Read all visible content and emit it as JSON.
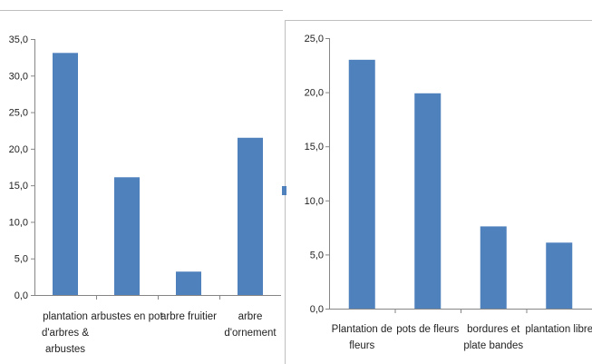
{
  "chart_data": [
    {
      "type": "bar",
      "title": "",
      "xlabel": "",
      "ylabel": "",
      "ylim": [
        0,
        35
      ],
      "ytick_step": 5,
      "ytick_labels": [
        "0,0",
        "5,0",
        "10,0",
        "15,0",
        "20,0",
        "25,0",
        "30,0",
        "35,0"
      ],
      "categories": [
        [
          "plantation",
          "d'arbres &",
          "arbustes"
        ],
        [
          "arbustes en pot"
        ],
        [
          "arbre fruitier"
        ],
        [
          "arbre",
          "d'ornement"
        ]
      ],
      "values": [
        33.1,
        16.1,
        3.2,
        21.5
      ],
      "grid": false,
      "legend": "none",
      "bar_color": "#4F81BD"
    },
    {
      "type": "bar",
      "title": "",
      "xlabel": "",
      "ylabel": "",
      "ylim": [
        0,
        25
      ],
      "ytick_step": 5,
      "ytick_labels": [
        "0,0",
        "5,0",
        "10,0",
        "15,0",
        "20,0",
        "25,0"
      ],
      "categories": [
        [
          "Plantation de",
          "fleurs"
        ],
        [
          "pots de fleurs"
        ],
        [
          "bordures et",
          "plate bandes"
        ],
        [
          "plantation libre"
        ]
      ],
      "values": [
        23.0,
        19.9,
        7.6,
        6.1
      ],
      "grid": false,
      "legend": "none",
      "bar_color": "#4F81BD"
    }
  ],
  "colors": {
    "axis": "#868686",
    "frame": "#BFBFBF",
    "text": "#222222"
  }
}
